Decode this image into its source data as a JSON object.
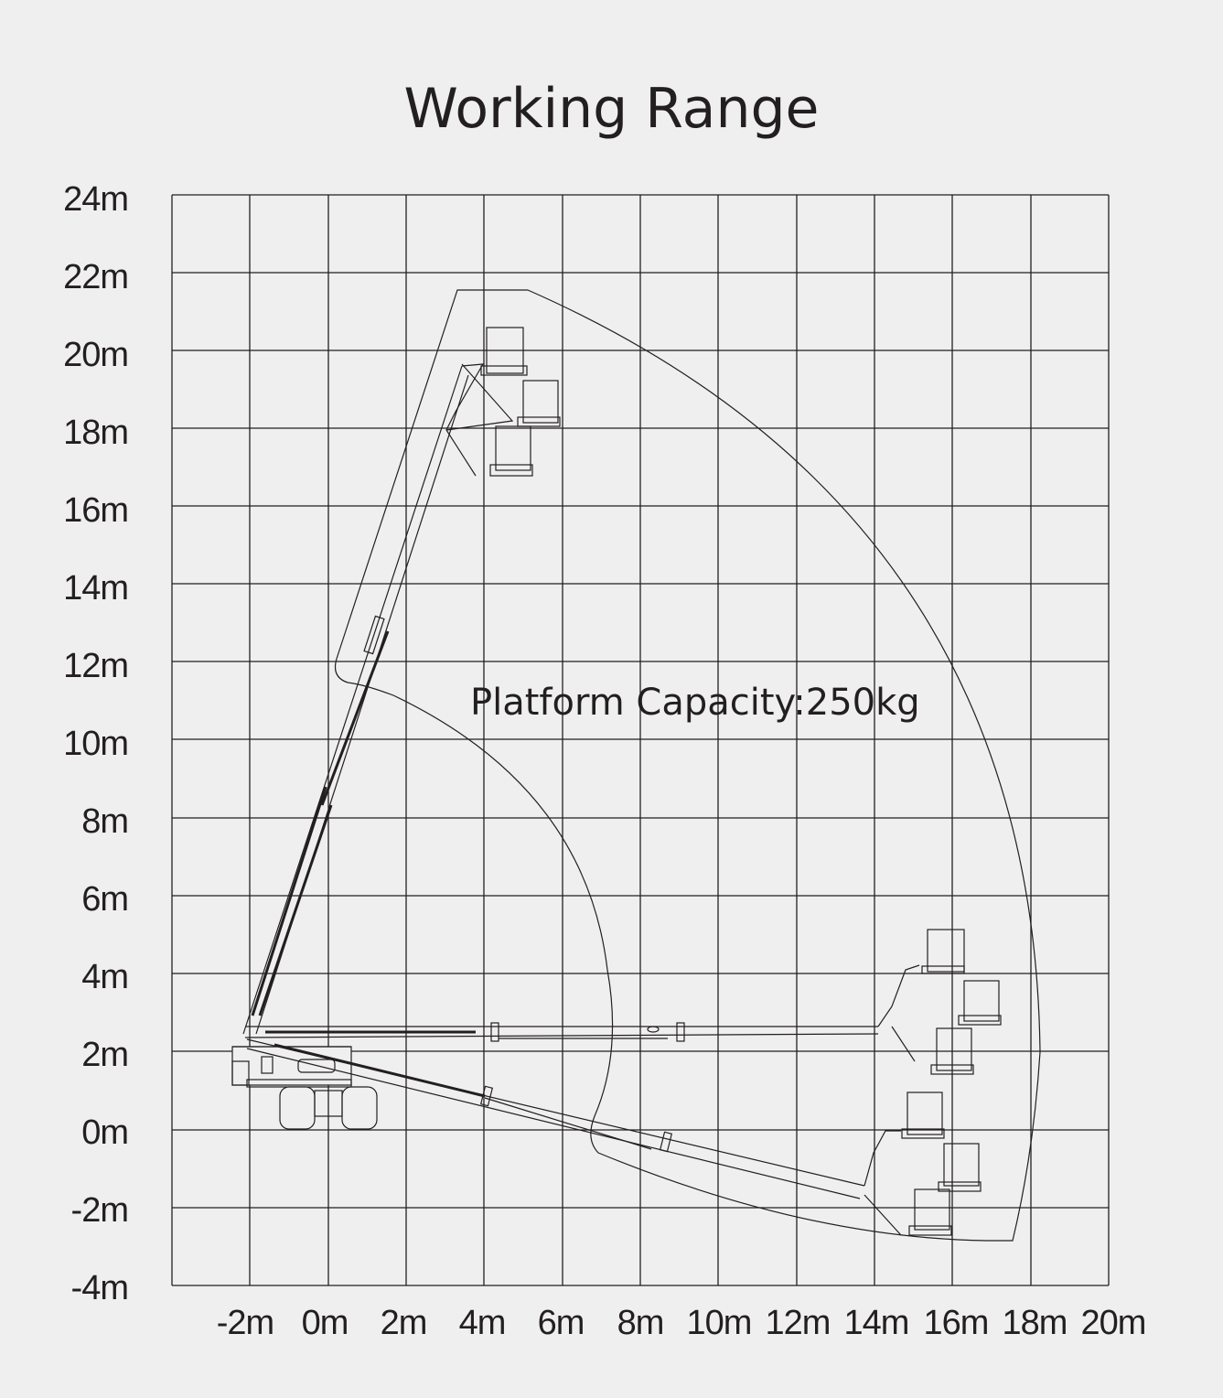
{
  "title": "Working Range",
  "capacity_label": "Platform Capacity:250kg",
  "y_axis": {
    "labels": [
      "24m",
      "22m",
      "20m",
      "18m",
      "16m",
      "14m",
      "12m",
      "10m",
      "8m",
      "6m",
      "4m",
      "2m",
      "0m",
      "-2m",
      "-4m"
    ]
  },
  "x_axis": {
    "labels": [
      "-2m",
      "0m",
      "2m",
      "4m",
      "6m",
      "8m",
      "10m",
      "12m",
      "14m",
      "16m",
      "18m",
      "20m"
    ]
  },
  "colors": {
    "background": "#efefef",
    "line": "#231f20"
  }
}
